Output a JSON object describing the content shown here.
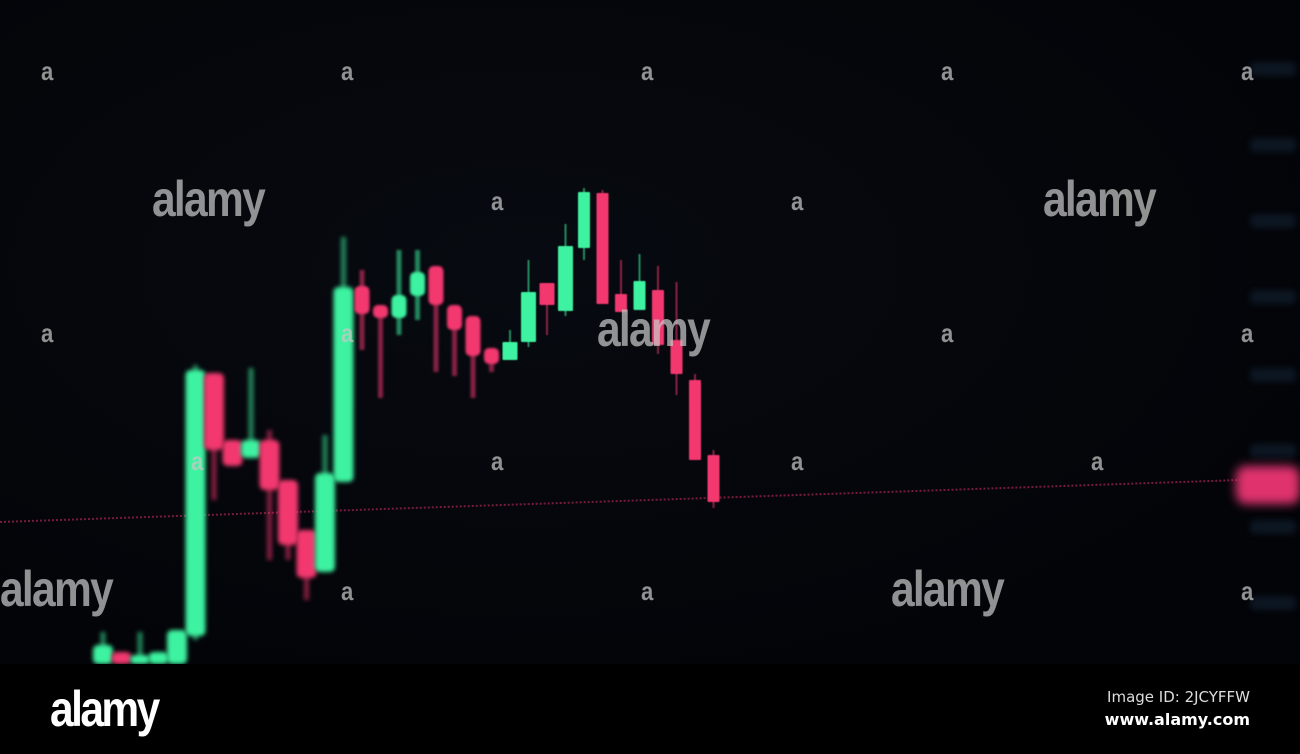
{
  "chart_data": {
    "type": "candlestick",
    "title": "",
    "xlabel": "",
    "ylabel": "",
    "grid": false,
    "colors": {
      "up": "#3df2a0",
      "down": "#f2386f",
      "background": "#04060a",
      "price_line": "#c8285a"
    },
    "candles": [
      {
        "o": 0,
        "c": 9.5,
        "h": 16,
        "l": 0
      },
      {
        "o": 6,
        "c": 0,
        "h": 6,
        "l": 0
      },
      {
        "o": 0,
        "c": 4.5,
        "h": 16,
        "l": 0
      },
      {
        "o": 0,
        "c": 6,
        "h": 6,
        "l": 0
      },
      {
        "o": 0,
        "c": 17,
        "h": 17,
        "l": 0
      },
      {
        "o": 14,
        "c": 147,
        "h": 149.5,
        "l": 12
      },
      {
        "o": 145.5,
        "c": 107,
        "h": 145.5,
        "l": 82
      },
      {
        "o": 112,
        "c": 99,
        "h": 112,
        "l": 99
      },
      {
        "o": 103,
        "c": 112,
        "h": 148,
        "l": 103
      },
      {
        "o": 112,
        "c": 87,
        "h": 117,
        "l": 52
      },
      {
        "o": 92,
        "c": 59.5,
        "h": 92,
        "l": 52
      },
      {
        "o": 67,
        "c": 43,
        "h": 67,
        "l": 32
      },
      {
        "o": 46,
        "c": 95.5,
        "h": 114.5,
        "l": 46
      },
      {
        "o": 91,
        "c": 188.5,
        "h": 213.5,
        "l": 91
      },
      {
        "o": 189,
        "c": 175,
        "h": 197,
        "l": 157
      },
      {
        "o": 179.5,
        "c": 173,
        "h": 179.5,
        "l": 133
      },
      {
        "o": 173,
        "c": 184.5,
        "h": 207,
        "l": 164.5
      },
      {
        "o": 184,
        "c": 196,
        "h": 207,
        "l": 172
      },
      {
        "o": 199,
        "c": 179.5,
        "h": 199,
        "l": 146
      },
      {
        "o": 179.5,
        "c": 167,
        "h": 179.5,
        "l": 144
      },
      {
        "o": 174,
        "c": 154,
        "h": 174,
        "l": 133
      },
      {
        "o": 158,
        "c": 150,
        "h": 158,
        "l": 146
      },
      {
        "o": 152,
        "c": 161,
        "h": 167,
        "l": 152
      },
      {
        "o": 161,
        "c": 186,
        "h": 202,
        "l": 158.5
      },
      {
        "o": 190.5,
        "c": 179.5,
        "h": 190.5,
        "l": 164.5
      },
      {
        "o": 176.5,
        "c": 209,
        "h": 220,
        "l": 174
      },
      {
        "o": 208,
        "c": 236,
        "h": 238,
        "l": 202
      },
      {
        "o": 235.5,
        "c": 180,
        "h": 237,
        "l": 180
      },
      {
        "o": 185,
        "c": 176,
        "h": 202,
        "l": 176
      },
      {
        "o": 177,
        "c": 191.5,
        "h": 205,
        "l": 177
      },
      {
        "o": 187,
        "c": 159.5,
        "h": 199,
        "l": 155
      },
      {
        "o": 162,
        "c": 145,
        "h": 191,
        "l": 134.5
      },
      {
        "o": 142,
        "c": 102,
        "h": 145,
        "l": 102
      },
      {
        "o": 104.5,
        "c": 81,
        "h": 107,
        "l": 78
      }
    ],
    "current_price_line": 81
  },
  "watermark": {
    "brand": "alamy",
    "letter": "a"
  },
  "footer": {
    "logo": "alamy",
    "image_id": "Image ID: 2JCYFFW",
    "url": "www.alamy.com"
  }
}
